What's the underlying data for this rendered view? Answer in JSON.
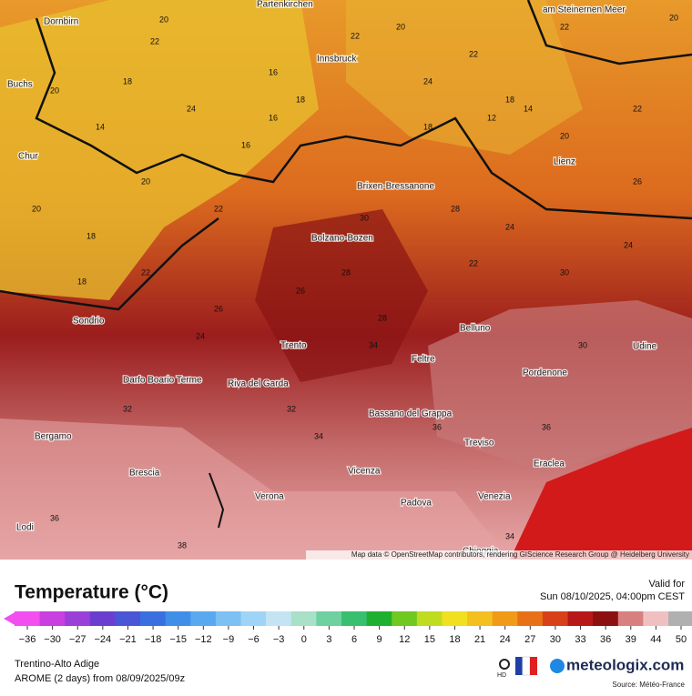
{
  "header": {
    "title": "Temperature (°C)",
    "valid_label": "Valid for",
    "valid_time": "Sun 08/10/2025, 04:00pm CEST"
  },
  "footer": {
    "region": "Trentino-Alto Adige",
    "model": "AROME (2 days) from 08/09/2025/09z",
    "brand": "meteologix.com",
    "source": "Source: Météo-France",
    "hd": "HD"
  },
  "map": {
    "attribution": "Map data © OpenStreetMap contributors, rendering GIScience Research Group @ Heidelberg University",
    "cities": [
      "Dornbirn",
      "Buchs",
      "Chur",
      "Sondrio",
      "Bergamo",
      "Brescia",
      "Lodi",
      "Verona",
      "Vicenza",
      "Padova",
      "Venezia",
      "Treviso",
      "Eraclea",
      "Pordenone",
      "Udine",
      "Belluno",
      "Feltre",
      "Bassano del Grappa",
      "Trento",
      "Riva del Garda",
      "Darfo Boario Terme",
      "Bolzano-Bozen",
      "Brixen-Bressanone",
      "Innsbruck",
      "Lienz",
      "Partenkirchen",
      "am Steinernen Meer",
      "Chioggia"
    ],
    "temperatures": [
      20,
      22,
      18,
      24,
      22,
      20,
      18,
      16,
      18,
      22,
      20,
      24,
      22,
      18,
      20,
      22,
      16,
      14,
      18,
      20,
      22,
      24,
      26,
      28,
      30,
      22,
      24,
      26,
      28,
      30,
      32,
      34,
      34,
      36,
      36,
      38,
      36,
      34,
      32,
      30,
      28,
      26,
      24,
      22,
      20,
      18,
      16,
      14,
      12,
      20
    ]
  },
  "colorbar": {
    "ticks": [
      {
        "value": -36,
        "label": "−36"
      },
      {
        "value": -30,
        "label": "−30"
      },
      {
        "value": -27,
        "label": "−27"
      },
      {
        "value": -24,
        "label": "−24"
      },
      {
        "value": -21,
        "label": "−21"
      },
      {
        "value": -18,
        "label": "−18"
      },
      {
        "value": -15,
        "label": "−15"
      },
      {
        "value": -12,
        "label": "−12"
      },
      {
        "value": -9,
        "label": "−9"
      },
      {
        "value": -6,
        "label": "−6"
      },
      {
        "value": -3,
        "label": "−3"
      },
      0,
      3,
      6,
      9,
      12,
      15,
      18,
      21,
      24,
      27,
      30,
      33,
      36,
      39,
      44,
      50
    ]
  }
}
